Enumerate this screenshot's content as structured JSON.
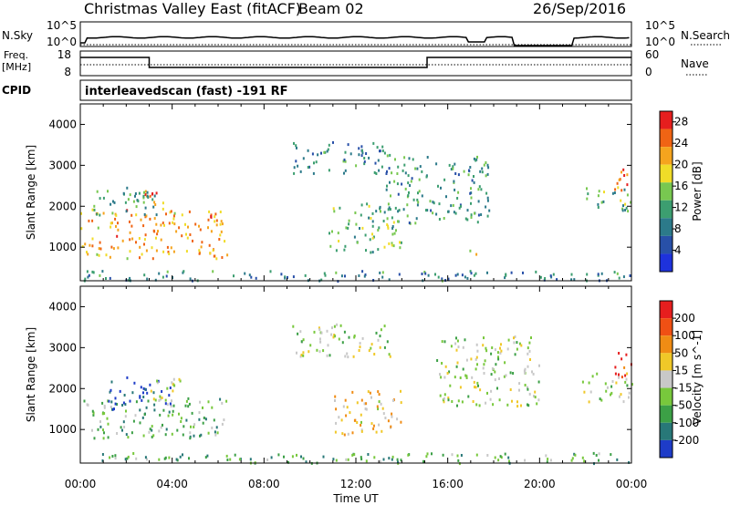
{
  "header": {
    "station": "Christmas Valley East (fitACF)",
    "beam": "Beam 02",
    "date": "26/Sep/2016"
  },
  "panels": {
    "nsky_label": "N.Sky",
    "nsky_ticks": [
      "10^5",
      "10^0"
    ],
    "nsearch_label": "N.Search",
    "nsearch_ticks": [
      "10^5",
      "10^0"
    ],
    "freq_label_1": "Freq.",
    "freq_label_2": "[MHz]",
    "freq_ticks": [
      "18",
      "8"
    ],
    "nave_label": "Nave",
    "nave_ticks": [
      "60",
      "0"
    ],
    "cpid_label": "CPID",
    "cpid_text": "interleavedscan (fast) -191 RF"
  },
  "chart_data": [
    {
      "type": "heatmap",
      "name": "power",
      "ylabel": "Slant Range [km]",
      "xlabel": "Time UT",
      "x_ticks": [
        "00:00",
        "04:00",
        "08:00",
        "12:00",
        "16:00",
        "20:00",
        "00:00"
      ],
      "x_range_hours": [
        0,
        24
      ],
      "y_ticks": [
        1000,
        2000,
        3000,
        4000
      ],
      "y_range_km": [
        180,
        4500
      ],
      "colorbar": {
        "label": "Power [dB]",
        "ticks": [
          4,
          8,
          12,
          16,
          20,
          24,
          28
        ],
        "range": [
          0,
          30
        ],
        "colors": [
          "#1e32dc",
          "#2850a8",
          "#2c7a8a",
          "#3c9e70",
          "#78c850",
          "#f0dc28",
          "#f5a41e",
          "#f06414",
          "#e61e1e"
        ]
      },
      "regions": [
        {
          "t0": 0.0,
          "t1": 6.4,
          "r0": 750,
          "r1": 1950,
          "level": 0.72,
          "note": "band"
        },
        {
          "t0": 2.8,
          "t1": 4.0,
          "r0": 1900,
          "r1": 2400,
          "level": 0.8
        },
        {
          "t0": 0.2,
          "t1": 3.3,
          "r0": 1800,
          "r1": 2500,
          "level": 0.4
        },
        {
          "t0": 0.0,
          "t1": 24.0,
          "r0": 200,
          "r1": 450,
          "level": 0.3
        },
        {
          "t0": 9.2,
          "t1": 13.5,
          "r0": 2800,
          "r1": 3600,
          "level": 0.3
        },
        {
          "t0": 10.8,
          "t1": 14.0,
          "r0": 900,
          "r1": 2100,
          "level": 0.45
        },
        {
          "t0": 13.3,
          "t1": 17.8,
          "r0": 1600,
          "r1": 3300,
          "level": 0.35
        },
        {
          "t0": 16.7,
          "t1": 17.3,
          "r0": 850,
          "r1": 1050,
          "level": 0.7
        },
        {
          "t0": 21.8,
          "t1": 24.0,
          "r0": 1900,
          "r1": 2500,
          "level": 0.45
        },
        {
          "t0": 23.1,
          "t1": 24.0,
          "r0": 2400,
          "r1": 3000,
          "level": 0.85
        }
      ]
    },
    {
      "type": "heatmap",
      "name": "velocity",
      "ylabel": "Slant Range [km]",
      "xlabel": "Time UT",
      "x_ticks": [
        "00:00",
        "04:00",
        "08:00",
        "12:00",
        "16:00",
        "20:00",
        "00:00"
      ],
      "x_range_hours": [
        0,
        24
      ],
      "y_ticks": [
        1000,
        2000,
        3000,
        4000
      ],
      "y_range_km": [
        180,
        4500
      ],
      "colorbar": {
        "label": "Velocity [m s^-1]",
        "ticks": [
          200,
          100,
          50,
          15,
          -15,
          -50,
          -100,
          -200
        ],
        "colors": [
          "#1e3cc8",
          "#287878",
          "#3ca046",
          "#78c83c",
          "#c8c8c8",
          "#f0c828",
          "#f08c14",
          "#f05014",
          "#e61e1e"
        ]
      },
      "regions": [
        {
          "t0": 0.0,
          "t1": 6.4,
          "r0": 800,
          "r1": 1800,
          "level": 0.35
        },
        {
          "t0": 1.2,
          "t1": 3.9,
          "r0": 1500,
          "r1": 2300,
          "level": 0.05
        },
        {
          "t0": 3.0,
          "t1": 4.5,
          "r0": 1700,
          "r1": 2300,
          "level": 0.45
        },
        {
          "t0": 0.0,
          "t1": 24.0,
          "r0": 200,
          "r1": 450,
          "level": 0.3
        },
        {
          "t0": 9.2,
          "t1": 13.5,
          "r0": 2800,
          "r1": 3600,
          "level": 0.45
        },
        {
          "t0": 11.0,
          "t1": 14.0,
          "r0": 900,
          "r1": 2000,
          "level": 0.6
        },
        {
          "t0": 15.5,
          "t1": 20.0,
          "r0": 1600,
          "r1": 3300,
          "level": 0.45
        },
        {
          "t0": 21.8,
          "t1": 24.0,
          "r0": 1700,
          "r1": 2400,
          "level": 0.45
        },
        {
          "t0": 23.2,
          "t1": 24.0,
          "r0": 2300,
          "r1": 3000,
          "level": 0.88
        }
      ]
    }
  ],
  "time_axis": {
    "ticks": [
      "00:00",
      "04:00",
      "08:00",
      "12:00",
      "16:00",
      "20:00",
      "00:00"
    ],
    "label": "Time UT"
  }
}
